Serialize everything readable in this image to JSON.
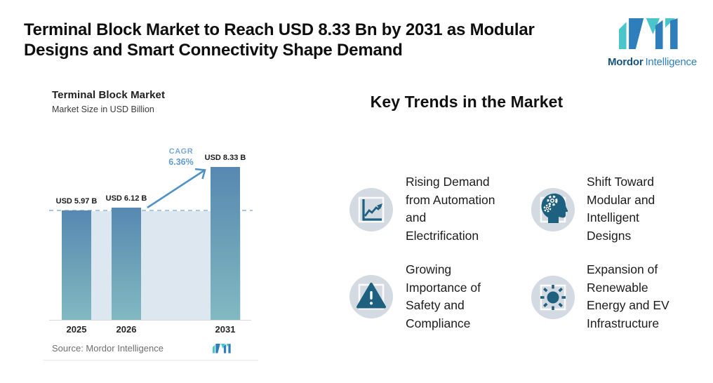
{
  "header": {
    "title": "Terminal Block Market to Reach USD 8.33 Bn by 2031 as Modular\nDesigns and Smart Connectivity Shape Demand"
  },
  "logo": {
    "wordmark_primary": "Mordor",
    "wordmark_secondary": "Intelligence",
    "teal": "#4AC6CA",
    "blue": "#2E7EBC"
  },
  "chart": {
    "title": "Terminal Block Market",
    "subtitle": "Market Size in USD Billion",
    "cagr_label": "CAGR",
    "cagr_value": "6.36%",
    "source": "Source: Mordor Intelligence"
  },
  "chart_data": {
    "type": "bar",
    "title": "Terminal Block Market",
    "ylabel": "Market Size in USD Billion",
    "categories": [
      "2025",
      "2026",
      "2031"
    ],
    "values": [
      5.97,
      6.12,
      8.33
    ],
    "value_labels": [
      "USD 5.97 B",
      "USD 6.12 B",
      "USD 8.33 B"
    ],
    "cagr_percent": 6.36,
    "cagr_text": "CAGR 6.36%",
    "reference_line_value": 5.97,
    "legend": "none",
    "grid": "off",
    "ylim": [
      0,
      9
    ],
    "colors": {
      "bar_gradient_top": "#5788B2",
      "bar_gradient_bottom": "#82B9C2",
      "plot_fill": "#DCE7F0",
      "dashed_reference": "#A9C8E4",
      "arrow": "#4E92C8"
    }
  },
  "trends": {
    "heading": "Key Trends in the Market",
    "icon_colors": {
      "circle": "#D4DAE2",
      "glyph": "#1E607F"
    },
    "items": [
      {
        "icon": "line-chart-icon",
        "lines": "Rising Demand\nfrom Automation\nand\nElectrification"
      },
      {
        "icon": "head-gears-icon",
        "lines": "Shift Toward\nModular and\nIntelligent\nDesigns"
      },
      {
        "icon": "warning-triangle-icon",
        "lines": "Growing\nImportance of\nSafety and\nCompliance"
      },
      {
        "icon": "sun-icon",
        "lines": "Expansion of\nRenewable\nEnergy and EV\nInfrastructure"
      }
    ]
  }
}
